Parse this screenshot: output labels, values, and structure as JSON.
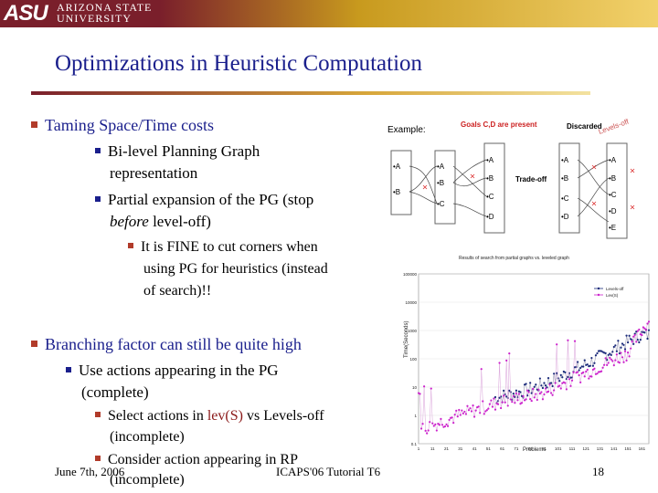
{
  "header": {
    "logo_mark": "ASU",
    "logo_line1": "ARIZONA STATE",
    "logo_line2": "UNIVERSITY"
  },
  "title": "Optimizations in Heuristic Computation",
  "bullets": {
    "b1": "Taming Space/Time costs",
    "b1_1a": "Bi-level Planning Graph",
    "b1_1b": "representation",
    "b1_2a": "Partial expansion of the PG (stop",
    "b1_2b_italic": "before",
    "b1_2b_rest": " level-off)",
    "b1_2_1a": "It is FINE to cut corners when",
    "b1_2_1b": "using PG for heuristics (instead",
    "b1_2_1c": "of search)!!",
    "b2": "Branching factor can still be quite high",
    "b2_1a": "Use actions appearing in the PG",
    "b2_1b": "(complete)",
    "b2_1_1a_pre": "Select actions in ",
    "b2_1_1a_red": "lev(S)",
    "b2_1_1a_post": " vs Levels-off",
    "b2_1_1b": "(incomplete)",
    "b2_1_2a": "Consider action appearing in RP",
    "b2_1_2b": "(incomplete)"
  },
  "diagram": {
    "example_label": "Example:",
    "goals_label": "Goals C,D are present",
    "discarded_label": "Discarded",
    "levels_off_label": "Levels-off",
    "tradeoff_label": "Trade-off",
    "col1": [
      "•A",
      "•B"
    ],
    "col2": [
      "•A",
      "•B",
      "•C"
    ],
    "col3": [
      "•A",
      "•B",
      "•C",
      "•D"
    ],
    "col4": [
      "•A",
      "•B",
      "•C",
      "•D"
    ],
    "col5": [
      "•A",
      "•B",
      "•C",
      "•D",
      "•E"
    ]
  },
  "chart_data": {
    "type": "scatter",
    "title": "Results of search from partial graphs vs. leveled graph",
    "xlabel": "Problems",
    "ylabel": "Time(Seconds)",
    "y_scale": "log",
    "y_ticks": [
      "100000",
      "10000",
      "1000",
      "100",
      "10",
      "1",
      "0.1"
    ],
    "x_ticks": [
      "1",
      "11",
      "21",
      "31",
      "41",
      "51",
      "61",
      "71",
      "81",
      "91",
      "101",
      "111",
      "121",
      "131",
      "141",
      "151",
      "161"
    ],
    "legend_position": "top-right",
    "series": [
      {
        "name": "Levels-off",
        "color": "#1a2a7a",
        "trend": [
          [
            55,
            4
          ],
          [
            80,
            8
          ],
          [
            100,
            20
          ],
          [
            120,
            60
          ],
          [
            140,
            200
          ],
          [
            160,
            700
          ]
        ]
      },
      {
        "name": "Lev(S)",
        "color": "#cc22cc",
        "trend": [
          [
            1,
            0.3
          ],
          [
            30,
            1
          ],
          [
            60,
            3
          ],
          [
            90,
            6
          ],
          [
            120,
            30
          ],
          [
            150,
            150
          ],
          [
            165,
            2000
          ]
        ]
      }
    ]
  },
  "footer": {
    "date": "June 7th, 2006",
    "event": "ICAPS'06 Tutorial T6",
    "page": "18"
  }
}
